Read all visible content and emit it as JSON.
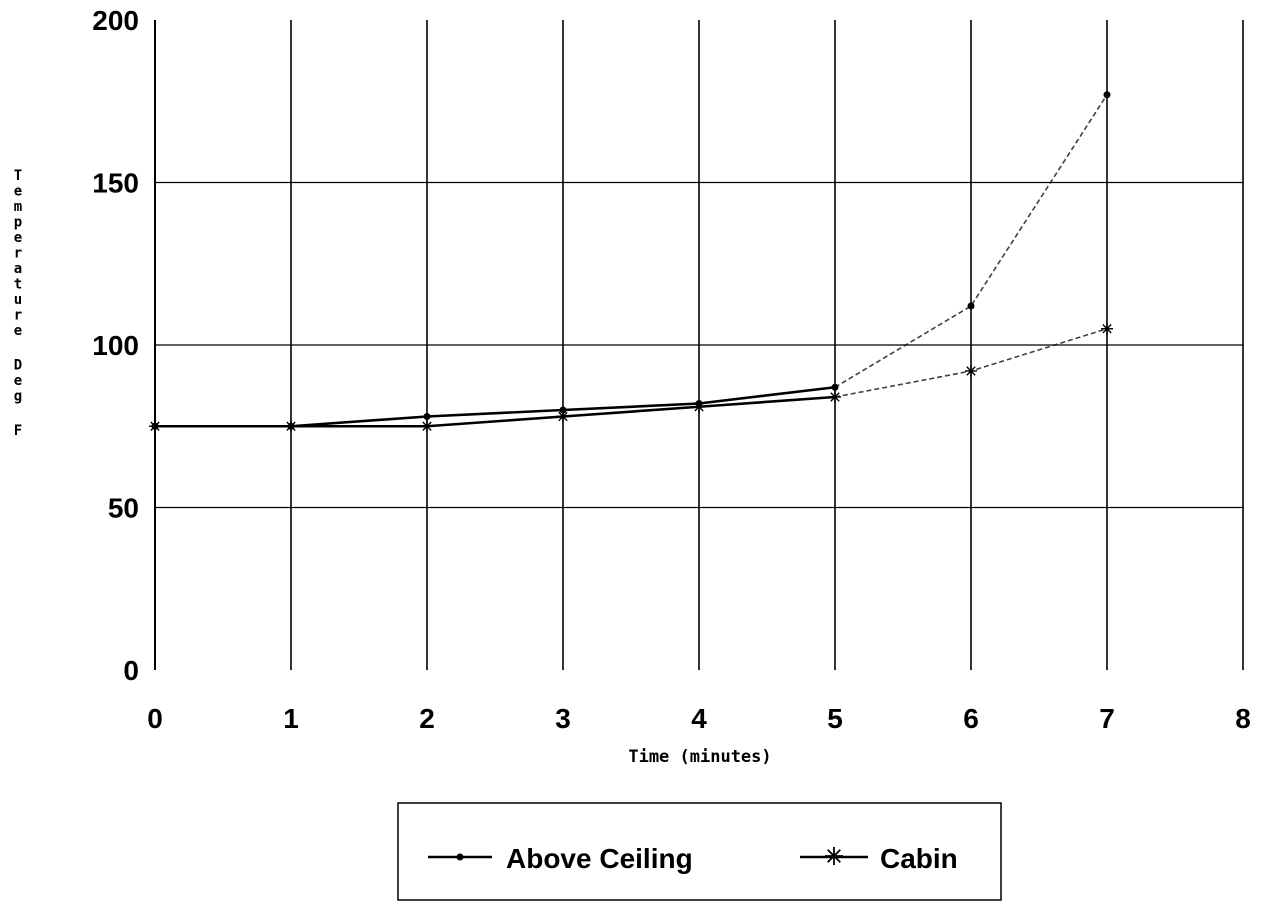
{
  "chart_data": {
    "type": "line",
    "title": "",
    "xlabel": "Time (minutes)",
    "ylabel": "Temperature Deg F",
    "xlim": [
      0,
      8
    ],
    "ylim": [
      0,
      200
    ],
    "x_ticks": [
      "0",
      "1",
      "2",
      "3",
      "4",
      "5",
      "6",
      "7",
      "8"
    ],
    "y_ticks": [
      "0",
      "50",
      "100",
      "150",
      "200"
    ],
    "grid": true,
    "legend_position": "bottom-center",
    "series": [
      {
        "name": "Above Ceiling",
        "marker": "dot",
        "color": "#000000",
        "x": [
          0,
          1,
          2,
          3,
          4,
          5,
          6,
          7
        ],
        "y": [
          75,
          75,
          78,
          80,
          82,
          87,
          112,
          177
        ]
      },
      {
        "name": "Cabin",
        "marker": "asterisk",
        "color": "#000000",
        "x": [
          0,
          1,
          2,
          3,
          4,
          5,
          6,
          7
        ],
        "y": [
          75,
          75,
          75,
          78,
          81,
          84,
          92,
          105
        ]
      }
    ]
  }
}
